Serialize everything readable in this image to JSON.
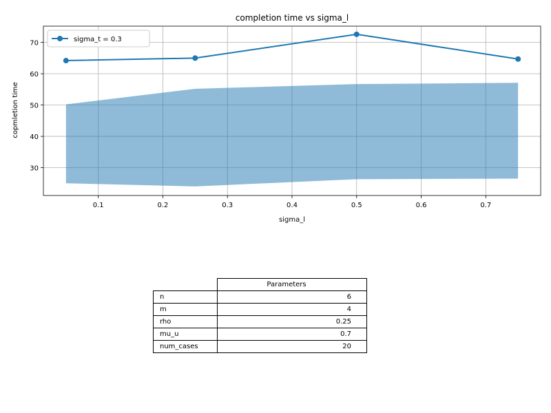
{
  "chart_data": {
    "type": "line",
    "title": "completion time vs sigma_l",
    "xlabel": "sigma_l",
    "ylabel": "copmletion time",
    "xlim": [
      0.015,
      0.785
    ],
    "ylim": [
      21.1,
      75.2
    ],
    "xticks": [
      0.1,
      0.2,
      0.3,
      0.4,
      0.5,
      0.6,
      0.7
    ],
    "xtick_labels": [
      "0.1",
      "0.2",
      "0.3",
      "0.4",
      "0.5",
      "0.6",
      "0.7"
    ],
    "yticks": [
      30,
      40,
      50,
      60,
      70
    ],
    "ytick_labels": [
      "30",
      "40",
      "50",
      "60",
      "70"
    ],
    "grid": true,
    "legend": "upper left",
    "x": [
      0.05,
      0.25,
      0.5,
      0.75
    ],
    "series": [
      {
        "name": "sigma_t = 0.3",
        "values": [
          64.2,
          65.0,
          72.6,
          64.7
        ],
        "color": "#1f77b4",
        "marker": "circle"
      }
    ],
    "band": {
      "upper": [
        50.2,
        55.2,
        56.7,
        57.1
      ],
      "lower": [
        25.0,
        24.0,
        26.3,
        26.5
      ],
      "color": "#1f77b4",
      "alpha": 0.5
    }
  },
  "table": {
    "header": "Parameters",
    "rows": [
      {
        "label": "n",
        "value": "6"
      },
      {
        "label": "m",
        "value": "4"
      },
      {
        "label": "rho",
        "value": "0.25"
      },
      {
        "label": "mu_u",
        "value": "0.7"
      },
      {
        "label": "num_cases",
        "value": "20"
      }
    ]
  }
}
